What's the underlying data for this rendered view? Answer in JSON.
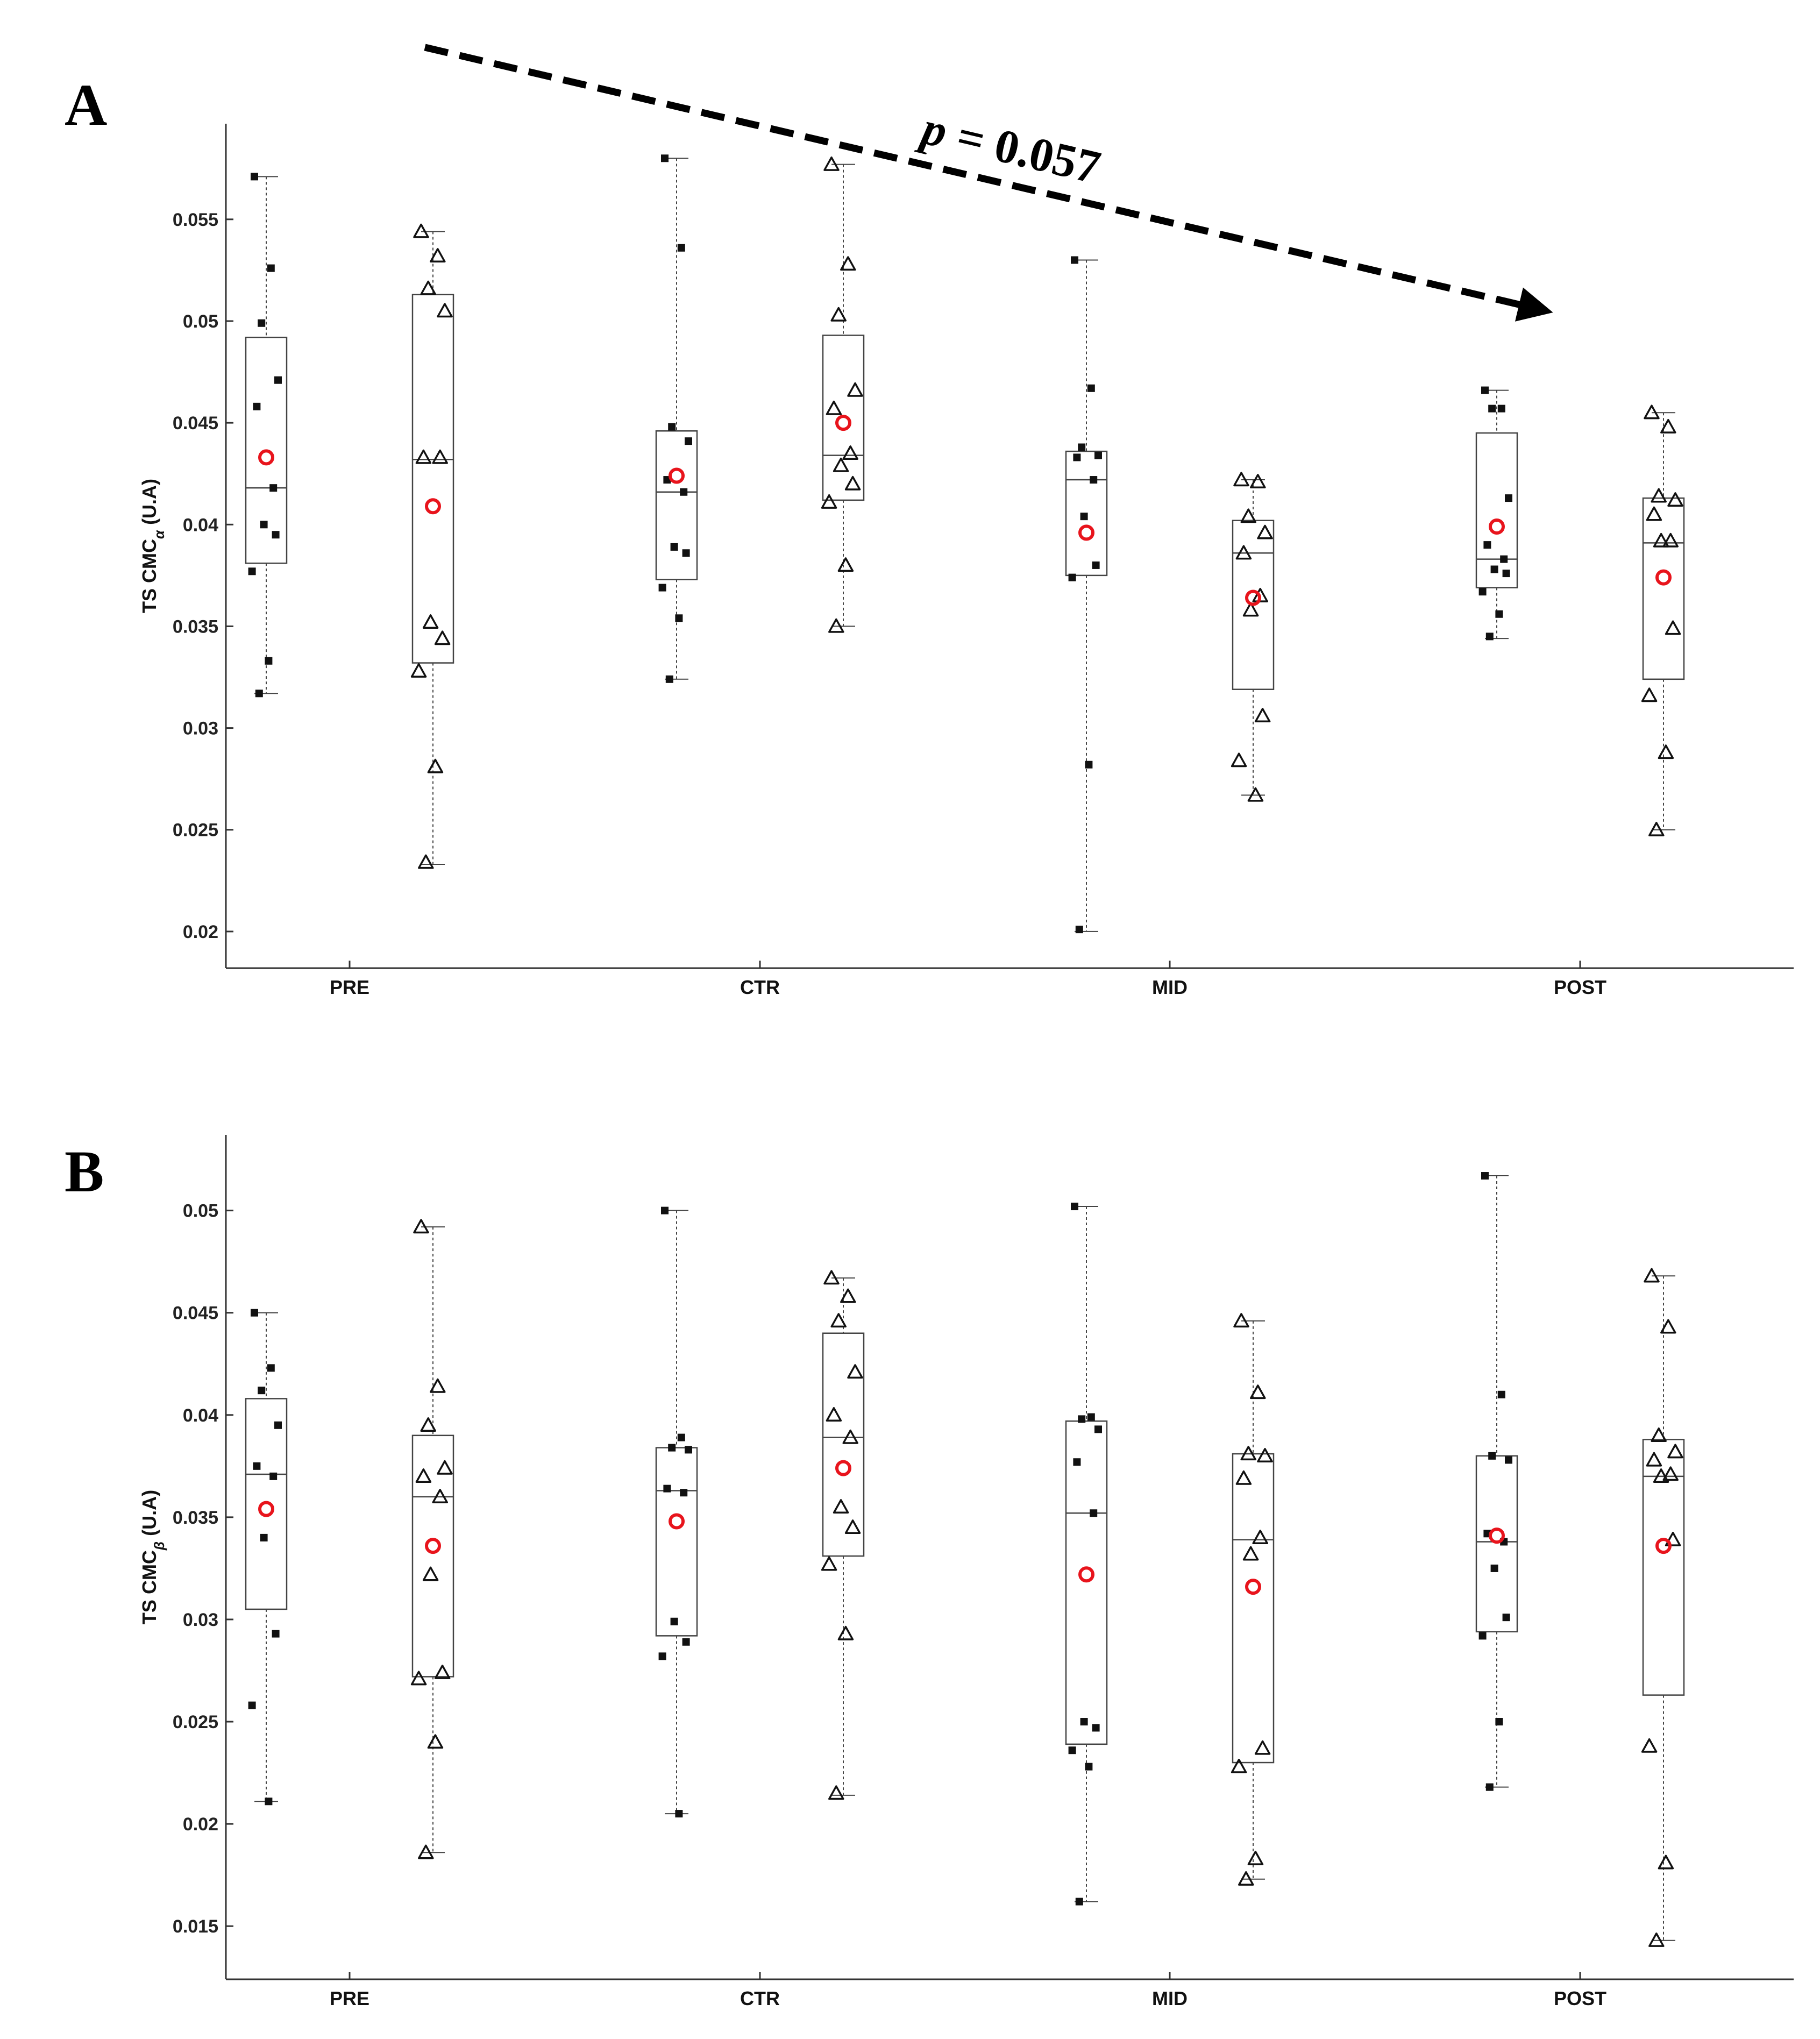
{
  "chart_data": [
    {
      "type": "boxplot",
      "panel_label": "A",
      "ylabel": "TS CMC",
      "ylabel_subscript": "α",
      "ylabel_suffix": " (U.A)",
      "ylim": [
        0.0182,
        0.0597
      ],
      "yticks": [
        0.02,
        0.025,
        0.03,
        0.035,
        0.04,
        0.045,
        0.05,
        0.055
      ],
      "ytick_labels": [
        "0.02",
        "0.025",
        "0.03",
        "0.035",
        "0.04",
        "0.045",
        "0.05",
        "0.055"
      ],
      "categories": [
        "PRE",
        "CTR",
        "MID",
        "POST"
      ],
      "annotation": {
        "text_p": "p",
        "text_rest": " = 0.057"
      },
      "groups": [
        {
          "category": "PRE",
          "marker": "square",
          "whisker_low": 0.0317,
          "q1": 0.0381,
          "median": 0.0418,
          "q3": 0.0492,
          "whisker_high": 0.0571,
          "mean": 0.0433,
          "points": [
            0.0571,
            0.0526,
            0.0499,
            0.0471,
            0.0458,
            0.0418,
            0.04,
            0.0395,
            0.0377,
            0.0333,
            0.0317
          ]
        },
        {
          "category": "PRE",
          "marker": "triangle",
          "whisker_low": 0.0233,
          "q1": 0.0332,
          "median": 0.0432,
          "q3": 0.0513,
          "whisker_high": 0.0544,
          "mean": 0.0409,
          "points": [
            0.0544,
            0.0532,
            0.0516,
            0.0505,
            0.0433,
            0.0433,
            0.0352,
            0.0344,
            0.0328,
            0.0281,
            0.0234
          ]
        },
        {
          "category": "CTR",
          "marker": "square",
          "whisker_low": 0.0324,
          "q1": 0.0373,
          "median": 0.0416,
          "q3": 0.0446,
          "whisker_high": 0.058,
          "mean": 0.0424,
          "points": [
            0.058,
            0.0536,
            0.0448,
            0.0441,
            0.0422,
            0.0416,
            0.0389,
            0.0386,
            0.0369,
            0.0354,
            0.0324
          ]
        },
        {
          "category": "CTR",
          "marker": "triangle",
          "whisker_low": 0.035,
          "q1": 0.0412,
          "median": 0.0434,
          "q3": 0.0493,
          "whisker_high": 0.0577,
          "mean": 0.045,
          "points": [
            0.0577,
            0.0528,
            0.0503,
            0.0466,
            0.0457,
            0.0435,
            0.0429,
            0.042,
            0.0411,
            0.038,
            0.035
          ]
        },
        {
          "category": "MID",
          "marker": "square",
          "whisker_low": 0.02,
          "q1": 0.0375,
          "median": 0.0422,
          "q3": 0.0436,
          "whisker_high": 0.053,
          "mean": 0.0396,
          "points": [
            0.053,
            0.0467,
            0.0438,
            0.0434,
            0.0433,
            0.0422,
            0.0404,
            0.038,
            0.0374,
            0.0282,
            0.0201
          ]
        },
        {
          "category": "MID",
          "marker": "triangle",
          "whisker_low": 0.0267,
          "q1": 0.0319,
          "median": 0.0386,
          "q3": 0.0402,
          "whisker_high": 0.0422,
          "mean": 0.0364,
          "points": [
            0.0422,
            0.0421,
            0.0404,
            0.0396,
            0.0386,
            0.0365,
            0.0358,
            0.0306,
            0.0284,
            0.0267
          ]
        },
        {
          "category": "POST",
          "marker": "square",
          "whisker_low": 0.0344,
          "q1": 0.0369,
          "median": 0.0383,
          "q3": 0.0445,
          "whisker_high": 0.0466,
          "mean": 0.0399,
          "points": [
            0.0466,
            0.0457,
            0.0457,
            0.0413,
            0.039,
            0.0383,
            0.0378,
            0.0376,
            0.0367,
            0.0356,
            0.0345
          ]
        },
        {
          "category": "POST",
          "marker": "triangle",
          "whisker_low": 0.025,
          "q1": 0.0324,
          "median": 0.0391,
          "q3": 0.0413,
          "whisker_high": 0.0455,
          "mean": 0.0374,
          "points": [
            0.0455,
            0.0448,
            0.0414,
            0.0412,
            0.0405,
            0.0392,
            0.0392,
            0.0349,
            0.0316,
            0.0288,
            0.025
          ]
        }
      ]
    },
    {
      "type": "boxplot",
      "panel_label": "B",
      "ylabel": "TS CMC",
      "ylabel_subscript": "β",
      "ylabel_suffix": " (U.A)",
      "ylim": [
        0.0124,
        0.0537
      ],
      "yticks": [
        0.015,
        0.02,
        0.025,
        0.03,
        0.035,
        0.04,
        0.045,
        0.05
      ],
      "ytick_labels": [
        "0.015",
        "0.02",
        "0.025",
        "0.03",
        "0.035",
        "0.04",
        "0.045",
        "0.05"
      ],
      "categories": [
        "PRE",
        "CTR",
        "MID",
        "POST"
      ],
      "groups": [
        {
          "category": "PRE",
          "marker": "square",
          "whisker_low": 0.0211,
          "q1": 0.0305,
          "median": 0.0371,
          "q3": 0.0408,
          "whisker_high": 0.045,
          "mean": 0.0354,
          "points": [
            0.045,
            0.0423,
            0.0412,
            0.0395,
            0.0375,
            0.037,
            0.034,
            0.0293,
            0.0258,
            0.0211
          ]
        },
        {
          "category": "PRE",
          "marker": "triangle",
          "whisker_low": 0.0186,
          "q1": 0.0272,
          "median": 0.036,
          "q3": 0.039,
          "whisker_high": 0.0492,
          "mean": 0.0336,
          "points": [
            0.0492,
            0.0414,
            0.0395,
            0.0374,
            0.037,
            0.036,
            0.0322,
            0.0274,
            0.0271,
            0.024,
            0.0186
          ]
        },
        {
          "category": "CTR",
          "marker": "square",
          "whisker_low": 0.0205,
          "q1": 0.0292,
          "median": 0.0363,
          "q3": 0.0384,
          "whisker_high": 0.05,
          "mean": 0.0348,
          "points": [
            0.05,
            0.0389,
            0.0384,
            0.0383,
            0.0364,
            0.0362,
            0.0299,
            0.0289,
            0.0282,
            0.0205
          ]
        },
        {
          "category": "CTR",
          "marker": "triangle",
          "whisker_low": 0.0214,
          "q1": 0.0331,
          "median": 0.0389,
          "q3": 0.044,
          "whisker_high": 0.0467,
          "mean": 0.0374,
          "points": [
            0.0467,
            0.0458,
            0.0446,
            0.0421,
            0.04,
            0.0389,
            0.0355,
            0.0345,
            0.0327,
            0.0293,
            0.0215
          ]
        },
        {
          "category": "MID",
          "marker": "square",
          "whisker_low": 0.0162,
          "q1": 0.0239,
          "median": 0.0352,
          "q3": 0.0397,
          "whisker_high": 0.0502,
          "mean": 0.0322,
          "points": [
            0.0502,
            0.0399,
            0.0398,
            0.0393,
            0.0377,
            0.0352,
            0.025,
            0.0247,
            0.0236,
            0.0228,
            0.0162
          ]
        },
        {
          "category": "MID",
          "marker": "triangle",
          "whisker_low": 0.0173,
          "q1": 0.023,
          "median": 0.0339,
          "q3": 0.0381,
          "whisker_high": 0.0446,
          "mean": 0.0316,
          "points": [
            0.0446,
            0.0411,
            0.0381,
            0.038,
            0.0369,
            0.034,
            0.0332,
            0.0237,
            0.0228,
            0.0183,
            0.0173
          ]
        },
        {
          "category": "POST",
          "marker": "square",
          "whisker_low": 0.0218,
          "q1": 0.0294,
          "median": 0.0338,
          "q3": 0.038,
          "whisker_high": 0.0517,
          "mean": 0.0341,
          "points": [
            0.0517,
            0.041,
            0.038,
            0.0378,
            0.0342,
            0.0338,
            0.0325,
            0.0301,
            0.0292,
            0.025,
            0.0218
          ]
        },
        {
          "category": "POST",
          "marker": "triangle",
          "whisker_low": 0.0143,
          "q1": 0.0263,
          "median": 0.037,
          "q3": 0.0388,
          "whisker_high": 0.0468,
          "mean": 0.0336,
          "points": [
            0.0468,
            0.0443,
            0.039,
            0.0382,
            0.0378,
            0.0371,
            0.037,
            0.0339,
            0.0238,
            0.0181,
            0.0143
          ]
        }
      ]
    }
  ],
  "colors": {
    "mean_marker": "#e8141c",
    "axis": "#333333",
    "box": "#444444",
    "points": "#111111",
    "arrow": "#000000"
  }
}
